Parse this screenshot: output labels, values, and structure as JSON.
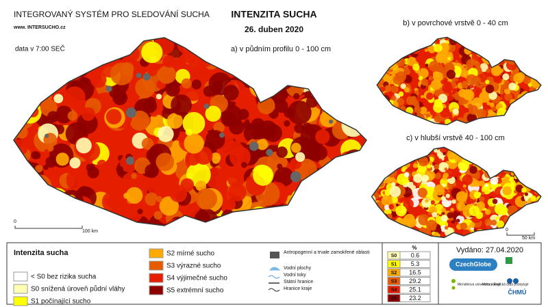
{
  "header": {
    "system": "INTEGROVANÝ SYSTÉM PRO SLEDOVÁNÍ SUCHA",
    "website": "www. INTERSUCHO.cz",
    "title": "INTENZITA SUCHA",
    "date": "26. duben 2020",
    "data_time": "data v 7:00 SEČ"
  },
  "maps": [
    {
      "label": "a) v půdním profilu 0 - 100 cm",
      "scale_start": "0",
      "scale_end": "100 km"
    },
    {
      "label": "b) v povrchové vrstvě 0 - 40 cm"
    },
    {
      "label": "c) v hlubší vrstvě 40 - 100 cm",
      "scale_start": "0",
      "scale_end": "50 km"
    }
  ],
  "legend": {
    "title": "Intenzita sucha",
    "items": [
      {
        "label": "< S0 bez rizika sucha",
        "color": "#ffffff"
      },
      {
        "label": "S0 snížená úroveň půdní vláhy",
        "color": "#ffffb4"
      },
      {
        "label": "S1 počínající sucho",
        "color": "#ffff00"
      },
      {
        "label": "S2 mírné sucho",
        "color": "#ffaa00"
      },
      {
        "label": "S3 výrazné sucho",
        "color": "#e65a00"
      },
      {
        "label": "S4 výjimečné sucho",
        "color": "#e61e00"
      },
      {
        "label": "S5 extrémní sucho",
        "color": "#8c0000"
      }
    ]
  },
  "other_legend": [
    "Antropogenní a trvale zamokřené oblasti",
    "Vodní plochy",
    "Vodní toky",
    "Státní hranice",
    "Hranice kraje"
  ],
  "stats": {
    "header": "%",
    "rows": [
      {
        "class": "S0",
        "value": 0.6
      },
      {
        "class": "S1",
        "value": 5.3
      },
      {
        "class": "S2",
        "value": 16.5
      },
      {
        "class": "S3",
        "value": 29.2
      },
      {
        "class": "S4",
        "value": 25.1
      },
      {
        "class": "S5",
        "value": 23.2
      }
    ]
  },
  "issued": "Vydáno: 27.04.2020",
  "logos": {
    "czechglobe": "CzechGlobe",
    "mendel": "Mendelova univerzita v Brně",
    "provider": "Meteorologická data poskytuje",
    "chmu": "ČHMÚ"
  }
}
